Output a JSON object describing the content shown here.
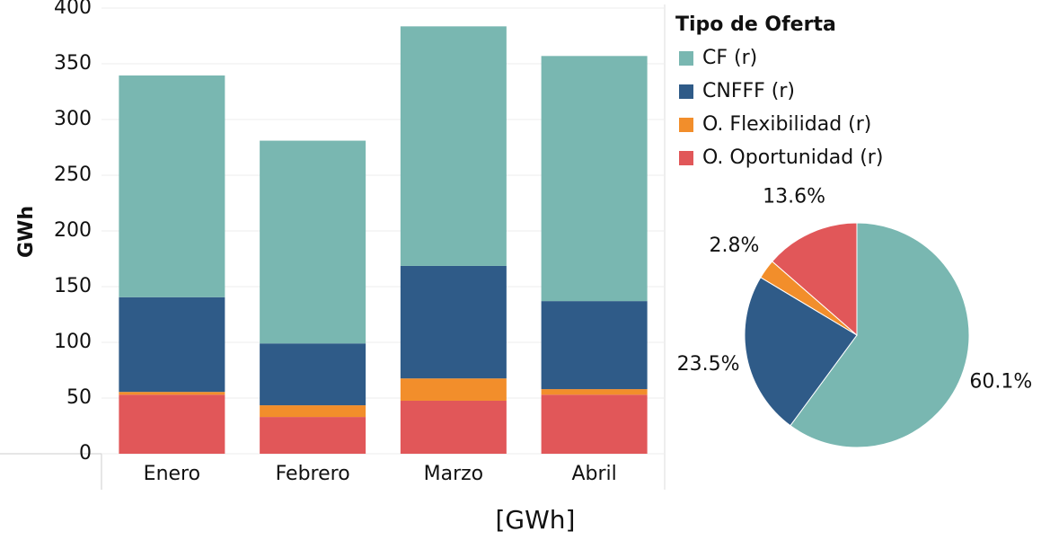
{
  "chart_data": [
    {
      "type": "bar",
      "stacked": true,
      "categories": [
        "Enero",
        "Febrero",
        "Marzo",
        "Abril"
      ],
      "ylabel": "GWh",
      "xlabel": "[GWh]",
      "legend_title": "Tipo de Oferta",
      "ylim": [
        0,
        400
      ],
      "yticks": [
        0,
        50,
        100,
        150,
        200,
        250,
        300,
        350,
        400
      ],
      "grid": true,
      "series": [
        {
          "name": "O. Oportunidad (r)",
          "color": "#e15759",
          "values": [
            53,
            33,
            47.6,
            53
          ]
        },
        {
          "name": "O. Flexibilidad (r)",
          "color": "#f28e2b",
          "values": [
            2.5,
            10.5,
            20,
            5
          ]
        },
        {
          "name": "CNFFF (r)",
          "color": "#2f5b88",
          "values": [
            85,
            55.5,
            101,
            79
          ]
        },
        {
          "name": "CF (r)",
          "color": "#79b7b1",
          "values": [
            199,
            182,
            215,
            220
          ]
        }
      ]
    },
    {
      "type": "pie",
      "values": [
        60.1,
        23.5,
        2.8,
        13.6
      ],
      "value_labels": [
        "60.1%",
        "23.5%",
        "2.8%",
        "13.6%"
      ],
      "colors": [
        "#79b7b1",
        "#2f5b88",
        "#f28e2b",
        "#e15759"
      ]
    }
  ]
}
